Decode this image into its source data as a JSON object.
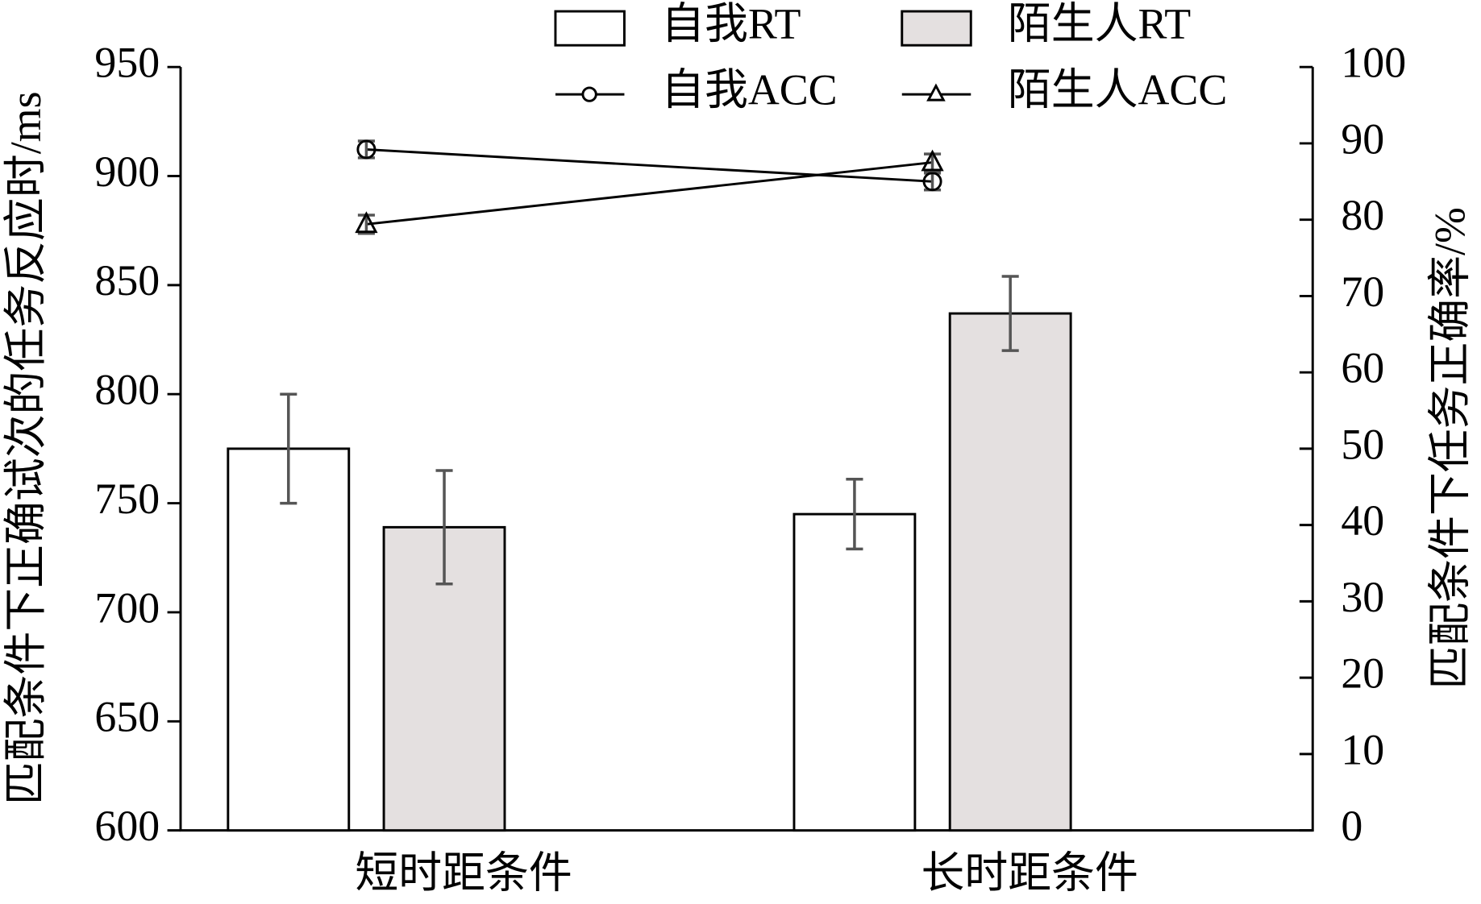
{
  "chart_data": {
    "type": "bar",
    "categories": [
      "短时距条件",
      "长时距条件"
    ],
    "y_label": "匹配条件下正确试次的任务反应时/ms",
    "y2_label": "匹配条件下任务正确率/%",
    "ylim": [
      600,
      950
    ],
    "yticks": [
      600,
      650,
      700,
      750,
      800,
      850,
      900,
      950
    ],
    "y2lim": [
      0,
      100
    ],
    "y2ticks": [
      0,
      10,
      20,
      30,
      40,
      50,
      60,
      70,
      80,
      90,
      100
    ],
    "series": [
      {
        "name": "自我RT",
        "type": "bar",
        "color": "#ffffff",
        "values": [
          775,
          745
        ],
        "errors": [
          25,
          16
        ]
      },
      {
        "name": "陌生人RT",
        "type": "bar",
        "color": "#e4e0e0",
        "values": [
          739,
          837
        ],
        "errors": [
          26,
          17
        ]
      },
      {
        "name": "自我ACC",
        "type": "line",
        "axis": "y2",
        "marker": "circle",
        "color": "#000000",
        "values": [
          89.2,
          85.0
        ],
        "errors": [
          1.1,
          1.1
        ]
      },
      {
        "name": "陌生人ACC",
        "type": "line",
        "axis": "y2",
        "marker": "triangle",
        "color": "#000000",
        "values": [
          79.4,
          87.5
        ],
        "errors": [
          1.2,
          1.1
        ]
      }
    ]
  }
}
